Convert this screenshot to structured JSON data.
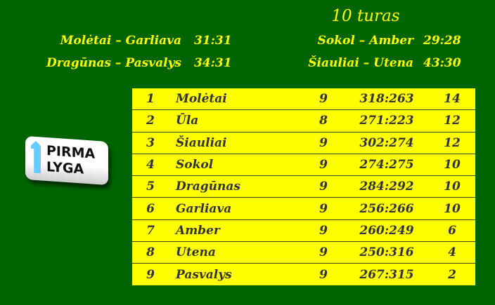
{
  "round_title": "10 turas",
  "results": [
    {
      "match": "Molėtai – Garliava",
      "score": "31:31"
    },
    {
      "match": "Dragūnas – Pasvalys",
      "score": "34:31"
    },
    {
      "match": "Sokol – Amber",
      "score": "29:28"
    },
    {
      "match": "Šiauliai – Utena",
      "score": "43:30"
    }
  ],
  "logo": {
    "line1": "PIRMA",
    "line2": "LYGA",
    "arrow_color": "#66ccff"
  },
  "colors": {
    "background": "#006400",
    "text": "#ffff00",
    "table_bg": "#ffff00"
  },
  "standings": [
    {
      "rank": "1",
      "team": "Molėtai",
      "games": "9",
      "score": "318:263",
      "points": "14"
    },
    {
      "rank": "2",
      "team": "Ūla",
      "games": "8",
      "score": "271:223",
      "points": "12"
    },
    {
      "rank": "3",
      "team": "Šiauliai",
      "games": "9",
      "score": "302:274",
      "points": "12"
    },
    {
      "rank": "4",
      "team": "Sokol",
      "games": "9",
      "score": "274:275",
      "points": "10"
    },
    {
      "rank": "5",
      "team": "Dragūnas",
      "games": "9",
      "score": "284:292",
      "points": "10"
    },
    {
      "rank": "6",
      "team": "Garliava",
      "games": "9",
      "score": "256:266",
      "points": "10"
    },
    {
      "rank": "7",
      "team": "Amber",
      "games": "9",
      "score": "260:249",
      "points": "6"
    },
    {
      "rank": "8",
      "team": "Utena",
      "games": "9",
      "score": "250:316",
      "points": "4"
    },
    {
      "rank": "9",
      "team": "Pasvalys",
      "games": "9",
      "score": "267:315",
      "points": "2"
    }
  ]
}
